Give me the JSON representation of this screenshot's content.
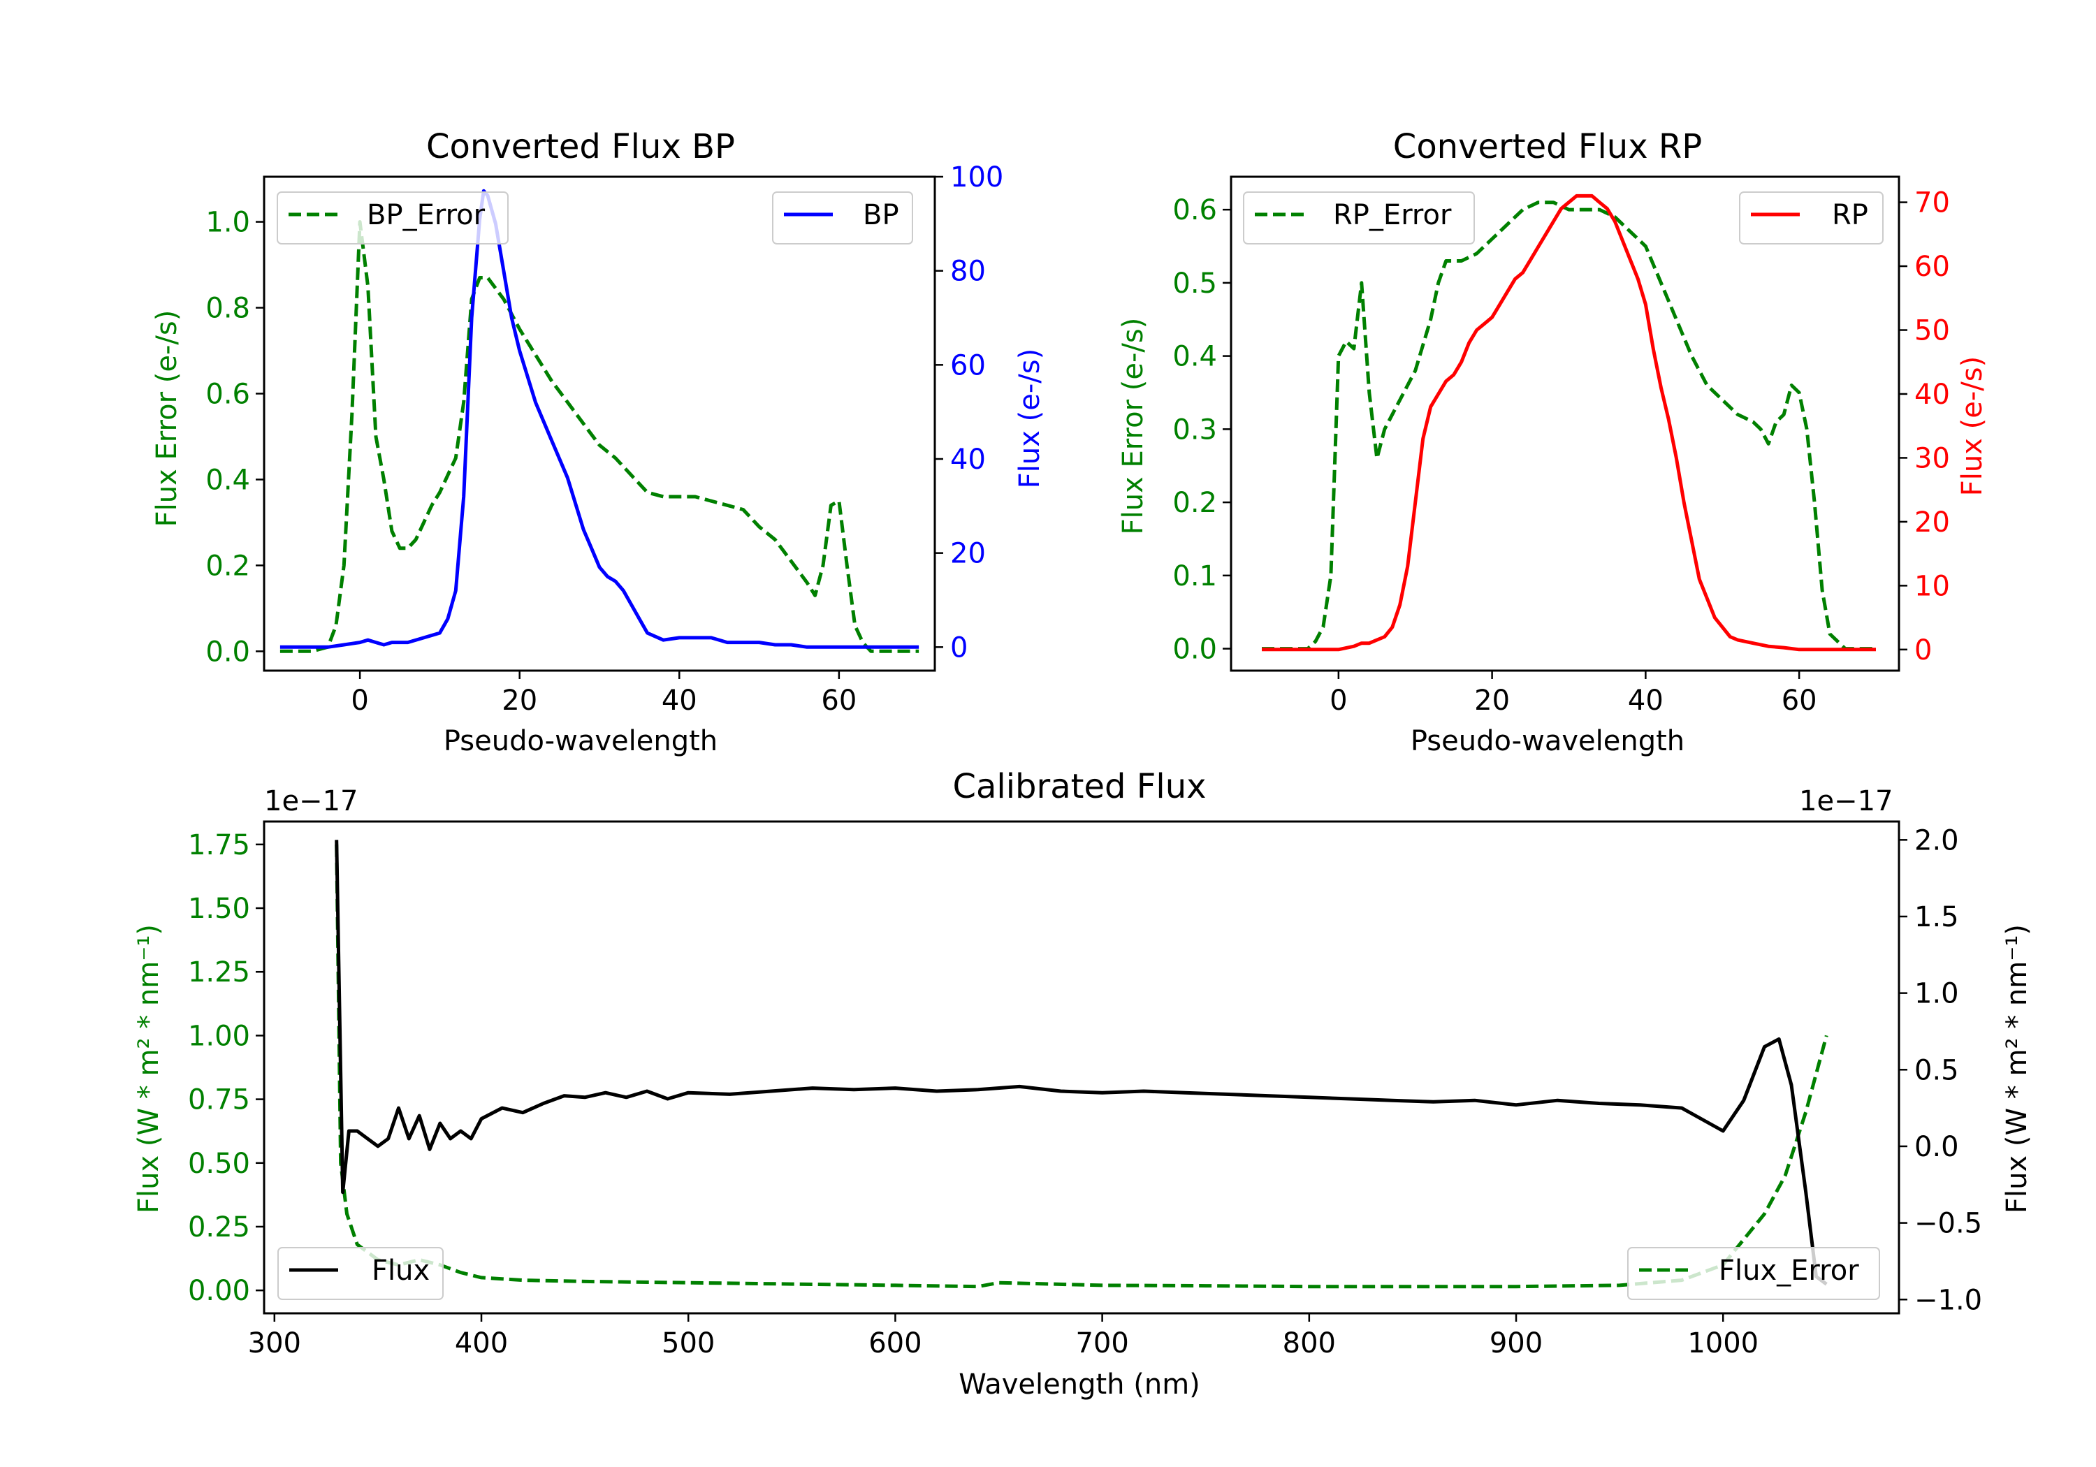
{
  "figure": {
    "colors": {
      "green": "#008000",
      "blue": "#0000ff",
      "red": "#ff0000",
      "black": "#000000"
    }
  },
  "chart_data": [
    {
      "type": "line",
      "title": "Converted Flux BP",
      "xlabel": "Pseudo-wavelength",
      "xlim": [
        -12,
        72
      ],
      "xticks": [
        0,
        20,
        40,
        60
      ],
      "left_axis": {
        "label": "Flux Error (e-/s)",
        "color": "#008000",
        "ylim": [
          -0.045,
          1.105
        ],
        "ticks": [
          "0.0",
          "0.2",
          "0.4",
          "0.6",
          "0.8",
          "1.0"
        ]
      },
      "right_axis": {
        "label": "Flux (e-/s)",
        "color": "#0000ff",
        "ylim": [
          -5,
          100
        ],
        "ticks": [
          "0",
          "20",
          "40",
          "60",
          "80",
          "100"
        ]
      },
      "legend_left": {
        "label": "BP_Error",
        "location": "upper-left"
      },
      "legend_right": {
        "label": "BP",
        "location": "upper-right"
      },
      "series": [
        {
          "name": "BP_Error",
          "axis": "left",
          "style": "dashed",
          "color": "#008000",
          "x": [
            -10,
            -6,
            -4,
            -3,
            -2,
            -1,
            0,
            1,
            2,
            3,
            4,
            5,
            6,
            7,
            8,
            9,
            10,
            12,
            13,
            14,
            15,
            16,
            18,
            20,
            22,
            24,
            26,
            28,
            30,
            32,
            34,
            36,
            38,
            40,
            42,
            44,
            46,
            48,
            50,
            52,
            54,
            56,
            57,
            58,
            59,
            60,
            61,
            62,
            63,
            64,
            66,
            70
          ],
          "y": [
            0.0,
            0.0,
            0.01,
            0.06,
            0.2,
            0.55,
            1.0,
            0.85,
            0.5,
            0.4,
            0.28,
            0.24,
            0.24,
            0.26,
            0.3,
            0.34,
            0.37,
            0.45,
            0.58,
            0.82,
            0.87,
            0.87,
            0.82,
            0.75,
            0.69,
            0.63,
            0.58,
            0.53,
            0.48,
            0.45,
            0.41,
            0.37,
            0.36,
            0.36,
            0.36,
            0.35,
            0.34,
            0.33,
            0.29,
            0.26,
            0.21,
            0.16,
            0.13,
            0.2,
            0.34,
            0.35,
            0.2,
            0.06,
            0.02,
            0.0,
            0.0,
            0.0
          ]
        },
        {
          "name": "BP",
          "axis": "right",
          "style": "solid",
          "color": "#0000ff",
          "x": [
            -10,
            -4,
            -2,
            0,
            1,
            2,
            3,
            4,
            6,
            8,
            10,
            11,
            12,
            13,
            14,
            15,
            15.5,
            16,
            17,
            18,
            19,
            20,
            22,
            24,
            26,
            28,
            29,
            30,
            31,
            32,
            33,
            34,
            35,
            36,
            38,
            40,
            42,
            44,
            46,
            48,
            50,
            52,
            54,
            56,
            60,
            64,
            70
          ],
          "y": [
            0,
            0,
            0.5,
            1,
            1.5,
            1,
            0.5,
            1,
            1,
            2,
            3,
            6,
            12,
            32,
            70,
            91,
            97,
            96,
            90,
            80,
            70,
            63,
            52,
            44,
            36,
            25,
            21,
            17,
            15,
            14,
            12,
            9,
            6,
            3,
            1.5,
            2,
            2,
            2,
            1,
            1,
            1,
            0.5,
            0.5,
            0,
            0,
            0,
            0
          ]
        }
      ]
    },
    {
      "type": "line",
      "title": "Converted Flux RP",
      "xlabel": "Pseudo-wavelength",
      "xlim": [
        -14,
        73
      ],
      "xticks": [
        0,
        20,
        40,
        60
      ],
      "left_axis": {
        "label": "Flux Error (e-/s)",
        "color": "#008000",
        "ylim": [
          -0.03,
          0.645
        ],
        "ticks": [
          "0.0",
          "0.1",
          "0.2",
          "0.3",
          "0.4",
          "0.5",
          "0.6"
        ]
      },
      "right_axis": {
        "label": "Flux (e-/s)",
        "color": "#ff0000",
        "ylim": [
          -3.3,
          74
        ],
        "ticks": [
          "0",
          "10",
          "20",
          "30",
          "40",
          "50",
          "60",
          "70"
        ]
      },
      "legend_left": {
        "label": "RP_Error",
        "location": "upper-left"
      },
      "legend_right": {
        "label": "RP",
        "location": "upper-right"
      },
      "series": [
        {
          "name": "RP_Error",
          "axis": "left",
          "style": "dashed",
          "color": "#008000",
          "x": [
            -10,
            -4,
            -3,
            -2,
            -1,
            0,
            1,
            2,
            3,
            4,
            5,
            6,
            8,
            10,
            12,
            13,
            14,
            16,
            18,
            20,
            22,
            24,
            26,
            28,
            30,
            32,
            34,
            36,
            38,
            40,
            42,
            44,
            46,
            48,
            50,
            52,
            54,
            55,
            56,
            57,
            58,
            59,
            60,
            61,
            62,
            63,
            64,
            66,
            70
          ],
          "y": [
            0.0,
            0.0,
            0.01,
            0.03,
            0.1,
            0.4,
            0.42,
            0.41,
            0.5,
            0.35,
            0.26,
            0.3,
            0.34,
            0.38,
            0.45,
            0.5,
            0.53,
            0.53,
            0.54,
            0.56,
            0.58,
            0.6,
            0.61,
            0.61,
            0.6,
            0.6,
            0.6,
            0.59,
            0.57,
            0.55,
            0.5,
            0.45,
            0.4,
            0.36,
            0.34,
            0.32,
            0.31,
            0.3,
            0.28,
            0.31,
            0.32,
            0.36,
            0.35,
            0.3,
            0.2,
            0.08,
            0.02,
            0.0,
            0.0
          ]
        },
        {
          "name": "RP",
          "axis": "right",
          "style": "solid",
          "color": "#ff0000",
          "x": [
            -10,
            -2,
            0,
            2,
            3,
            4,
            5,
            6,
            7,
            8,
            9,
            10,
            11,
            12,
            13,
            14,
            15,
            16,
            17,
            18,
            19,
            20,
            21,
            22,
            23,
            24,
            25,
            26,
            27,
            28,
            29,
            30,
            31,
            32,
            33,
            34,
            35,
            36,
            37,
            38,
            39,
            40,
            41,
            42,
            43,
            44,
            45,
            46,
            47,
            48,
            49,
            50,
            51,
            52,
            54,
            56,
            58,
            60,
            62,
            64,
            66,
            70
          ],
          "y": [
            0,
            0,
            0,
            0.5,
            1,
            1,
            1.5,
            2,
            3.5,
            7,
            13,
            23,
            33,
            38,
            40,
            42,
            43,
            45,
            48,
            50,
            51,
            52,
            54,
            56,
            58,
            59,
            61,
            63,
            65,
            67,
            69,
            70,
            71,
            71,
            71,
            70,
            69,
            67,
            64,
            61,
            58,
            54,
            47,
            41,
            36,
            30,
            23,
            17,
            11,
            8,
            5,
            3.5,
            2,
            1.5,
            1,
            0.5,
            0.3,
            0,
            0,
            0,
            0,
            0
          ]
        }
      ]
    },
    {
      "type": "line",
      "title": "Calibrated Flux",
      "xlabel": "Wavelength (nm)",
      "xlim": [
        295,
        1085
      ],
      "xticks": [
        300,
        400,
        500,
        600,
        700,
        800,
        900,
        1000
      ],
      "left_axis": {
        "label": "Flux (W * m² * nm⁻¹)",
        "color": "#008000",
        "ylim": [
          -0.09,
          1.84
        ],
        "ticks": [
          "0.00",
          "0.25",
          "0.50",
          "0.75",
          "1.00",
          "1.25",
          "1.50",
          "1.75"
        ],
        "offset_text": "1e−17"
      },
      "right_axis": {
        "label": "Flux (W * m² * nm⁻¹)",
        "color": "#000000",
        "ylim": [
          -1.09,
          2.12
        ],
        "ticks": [
          "−1.0",
          "−0.5",
          "0.0",
          "0.5",
          "1.0",
          "1.5",
          "2.0"
        ],
        "offset_text": "1e−17"
      },
      "legend_left": {
        "label": "Flux",
        "location": "lower-left"
      },
      "legend_right": {
        "label": "Flux_Error",
        "location": "lower-right"
      },
      "series": [
        {
          "name": "Flux_Error",
          "axis": "left",
          "style": "dashed",
          "color": "#008000",
          "x": [
            330,
            332,
            335,
            340,
            350,
            360,
            370,
            380,
            390,
            400,
            420,
            450,
            500,
            550,
            600,
            640,
            650,
            700,
            750,
            800,
            850,
            900,
            950,
            980,
            1000,
            1010,
            1020,
            1030,
            1040,
            1050
          ],
          "y": [
            1.75,
            0.5,
            0.3,
            0.18,
            0.12,
            0.1,
            0.12,
            0.1,
            0.07,
            0.05,
            0.04,
            0.035,
            0.03,
            0.025,
            0.02,
            0.015,
            0.03,
            0.02,
            0.018,
            0.015,
            0.015,
            0.015,
            0.02,
            0.04,
            0.1,
            0.2,
            0.3,
            0.45,
            0.7,
            1.0
          ]
        },
        {
          "name": "Flux",
          "axis": "right",
          "style": "solid",
          "color": "#000000",
          "x": [
            330,
            333,
            336,
            340,
            345,
            350,
            355,
            360,
            365,
            370,
            375,
            380,
            385,
            390,
            395,
            400,
            410,
            420,
            430,
            440,
            450,
            460,
            470,
            480,
            490,
            500,
            520,
            540,
            560,
            580,
            600,
            620,
            640,
            660,
            680,
            700,
            720,
            740,
            760,
            780,
            800,
            820,
            840,
            860,
            880,
            900,
            920,
            940,
            960,
            980,
            1000,
            1010,
            1020,
            1027,
            1033,
            1040,
            1045,
            1050
          ],
          "y": [
            2.0,
            -0.3,
            0.1,
            0.1,
            0.05,
            0.0,
            0.05,
            0.25,
            0.05,
            0.2,
            -0.02,
            0.15,
            0.05,
            0.1,
            0.05,
            0.18,
            0.25,
            0.22,
            0.28,
            0.33,
            0.32,
            0.35,
            0.32,
            0.36,
            0.31,
            0.35,
            0.34,
            0.36,
            0.38,
            0.37,
            0.38,
            0.36,
            0.37,
            0.39,
            0.36,
            0.35,
            0.36,
            0.35,
            0.34,
            0.33,
            0.32,
            0.31,
            0.3,
            0.29,
            0.3,
            0.27,
            0.3,
            0.28,
            0.27,
            0.25,
            0.1,
            0.3,
            0.65,
            0.7,
            0.4,
            -0.3,
            -0.85,
            -0.9
          ]
        }
      ]
    }
  ]
}
